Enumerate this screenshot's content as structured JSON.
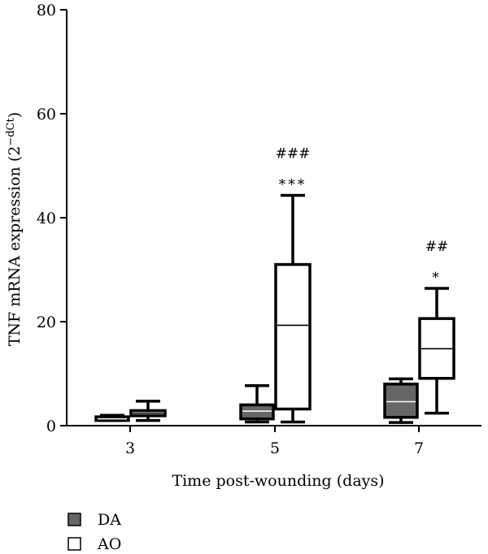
{
  "chart_data": {
    "type": "box",
    "xlabel": "Time post-wounding (days)",
    "ylabel": "TNF mRNA expression (2",
    "ylabel_sup": "−dCt",
    "ylabel_close": ")",
    "ylim": [
      0,
      80
    ],
    "yticks": [
      0,
      20,
      40,
      60,
      80
    ],
    "categories": [
      "3",
      "5",
      "7"
    ],
    "series": [
      {
        "name": "DA",
        "color": "#666666",
        "boxes": [
          {
            "category": "3",
            "min": 1.0,
            "q1": 1.0,
            "median": 1.3,
            "q3": 1.7,
            "max": 2.0
          },
          {
            "category": "5",
            "min": 0.7,
            "q1": 1.3,
            "median": 2.8,
            "q3": 4.0,
            "max": 7.7
          },
          {
            "category": "7",
            "min": 0.6,
            "q1": 1.6,
            "median": 4.6,
            "q3": 8.0,
            "max": 9.0
          }
        ]
      },
      {
        "name": "AO",
        "color": "#ffffff",
        "boxes": [
          {
            "category": "3",
            "min": 1.0,
            "q1": 1.9,
            "median": 2.4,
            "q3": 2.9,
            "max": 4.7
          },
          {
            "category": "5",
            "min": 0.7,
            "q1": 3.2,
            "median": 19.3,
            "q3": 31.0,
            "max": 44.3
          },
          {
            "category": "7",
            "min": 2.4,
            "q1": 9.1,
            "median": 14.8,
            "q3": 20.6,
            "max": 26.4
          }
        ]
      }
    ],
    "annotations": [
      {
        "category": "5",
        "series": "AO",
        "lines": [
          "###",
          "***"
        ]
      },
      {
        "category": "7",
        "series": "AO",
        "lines": [
          "##",
          "*"
        ]
      }
    ],
    "legend": {
      "placement": "bottom-left",
      "entries": [
        {
          "label": "DA",
          "color": "#666666"
        },
        {
          "label": "AO",
          "color": "#ffffff"
        }
      ]
    },
    "grid": false
  }
}
